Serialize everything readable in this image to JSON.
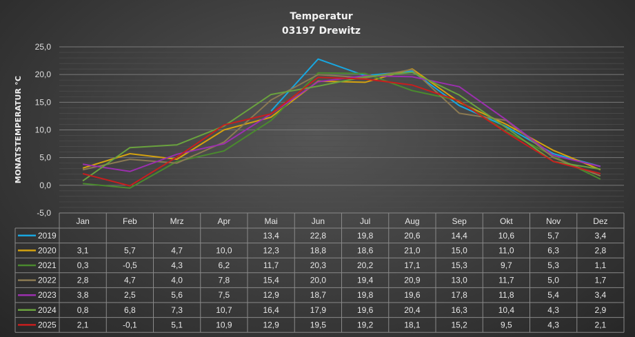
{
  "chart_data": {
    "type": "line",
    "title": "Temperatur",
    "subtitle": "03197 Drewitz",
    "ylabel": "MONATSTEMPERATUR °C",
    "ylim": [
      -5,
      25
    ],
    "yticks": [
      "-5,0",
      "0,0",
      "5,0",
      "10,0",
      "15,0",
      "20,0",
      "25,0"
    ],
    "ytick_values": [
      -5,
      0,
      5,
      10,
      15,
      20,
      25
    ],
    "grid": true,
    "legend": "data-table",
    "categories": [
      "Jan",
      "Feb",
      "Mrz",
      "Apr",
      "Mai",
      "Jun",
      "Jul",
      "Aug",
      "Sep",
      "Okt",
      "Nov",
      "Dez"
    ],
    "series": [
      {
        "name": "2019",
        "color": "#18a7e0",
        "values": [
          null,
          null,
          null,
          null,
          13.4,
          22.8,
          19.8,
          20.6,
          14.4,
          10.6,
          5.7,
          3.4
        ],
        "labels": [
          "",
          "",
          "",
          "",
          "13,4",
          "22,8",
          "19,8",
          "20,6",
          "14,4",
          "10,6",
          "5,7",
          "3,4"
        ]
      },
      {
        "name": "2020",
        "color": "#d4a20f",
        "values": [
          3.1,
          5.7,
          4.7,
          10.0,
          12.3,
          18.8,
          18.6,
          21.0,
          15.0,
          11.0,
          6.3,
          2.8
        ],
        "labels": [
          "3,1",
          "5,7",
          "4,7",
          "10,0",
          "12,3",
          "18,8",
          "18,6",
          "21,0",
          "15,0",
          "11,0",
          "6,3",
          "2,8"
        ]
      },
      {
        "name": "2021",
        "color": "#4a8a2e",
        "values": [
          0.3,
          -0.5,
          4.3,
          6.2,
          11.7,
          20.3,
          20.2,
          17.1,
          15.3,
          9.7,
          5.3,
          1.1
        ],
        "labels": [
          "0,3",
          "-0,5",
          "4,3",
          "6,2",
          "11,7",
          "20,3",
          "20,2",
          "17,1",
          "15,3",
          "9,7",
          "5,3",
          "1,1"
        ]
      },
      {
        "name": "2022",
        "color": "#8b7a52",
        "values": [
          2.8,
          4.7,
          4.0,
          7.8,
          15.4,
          20.0,
          19.4,
          20.9,
          13.0,
          11.7,
          5.0,
          1.7
        ],
        "labels": [
          "2,8",
          "4,7",
          "4,0",
          "7,8",
          "15,4",
          "20,0",
          "19,4",
          "20,9",
          "13,0",
          "11,7",
          "5,0",
          "1,7"
        ]
      },
      {
        "name": "2023",
        "color": "#9b2fae",
        "values": [
          3.8,
          2.5,
          5.6,
          7.5,
          12.9,
          18.7,
          19.8,
          19.6,
          17.8,
          11.8,
          5.4,
          3.4
        ],
        "labels": [
          "3,8",
          "2,5",
          "5,6",
          "7,5",
          "12,9",
          "18,7",
          "19,8",
          "19,6",
          "17,8",
          "11,8",
          "5,4",
          "3,4"
        ]
      },
      {
        "name": "2024",
        "color": "#6aa33e",
        "values": [
          0.8,
          6.8,
          7.3,
          10.7,
          16.4,
          17.9,
          19.6,
          20.4,
          16.3,
          10.4,
          4.3,
          2.9
        ],
        "labels": [
          "0,8",
          "6,8",
          "7,3",
          "10,7",
          "16,4",
          "17,9",
          "19,6",
          "20,4",
          "16,3",
          "10,4",
          "4,3",
          "2,9"
        ]
      },
      {
        "name": "2025",
        "color": "#c81e1e",
        "values": [
          2.1,
          -0.1,
          5.1,
          10.9,
          12.9,
          19.5,
          19.2,
          18.1,
          15.2,
          9.5,
          4.3,
          2.1
        ],
        "labels": [
          "2,1",
          "-0,1",
          "5,1",
          "10,9",
          "12,9",
          "19,5",
          "19,2",
          "18,1",
          "15,2",
          "9,5",
          "4,3",
          "2,1"
        ]
      }
    ]
  }
}
